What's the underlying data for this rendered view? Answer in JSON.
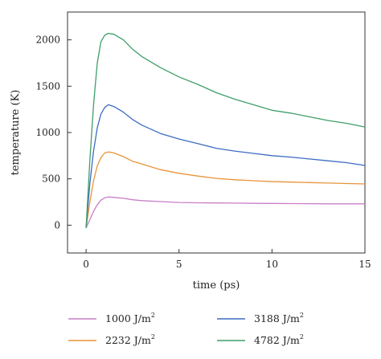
{
  "chart_data": {
    "type": "line",
    "xlabel": "time (ps)",
    "ylabel": "temperature (K)",
    "xlim": [
      -1,
      15
    ],
    "ylim": [
      -300,
      2300
    ],
    "x_ticks": [
      0,
      5,
      10,
      15
    ],
    "y_ticks": [
      0,
      500,
      1000,
      1500,
      2000
    ],
    "grid": false,
    "legend_position": "bottom",
    "series": [
      {
        "name": "1000 J/m",
        "name_sup": "2",
        "color": "#c77fc7",
        "x": [
          0,
          0.2,
          0.4,
          0.6,
          0.8,
          1.0,
          1.2,
          1.5,
          2,
          2.5,
          3,
          4,
          5,
          6,
          7,
          8,
          9,
          10,
          11,
          12,
          13,
          14,
          15
        ],
        "y": [
          -30,
          60,
          150,
          220,
          270,
          295,
          305,
          300,
          290,
          275,
          265,
          255,
          245,
          242,
          240,
          238,
          236,
          235,
          233,
          232,
          230,
          230,
          230
        ]
      },
      {
        "name": "2232 J/m",
        "name_sup": "2",
        "color": "#e8943a",
        "x": [
          0,
          0.2,
          0.4,
          0.6,
          0.8,
          1.0,
          1.2,
          1.5,
          2,
          2.5,
          3,
          4,
          5,
          6,
          7,
          8,
          9,
          10,
          11,
          12,
          13,
          14,
          15
        ],
        "y": [
          -30,
          250,
          480,
          640,
          730,
          780,
          790,
          780,
          740,
          690,
          660,
          600,
          560,
          530,
          505,
          490,
          480,
          470,
          465,
          460,
          455,
          450,
          445
        ]
      },
      {
        "name": "3188 J/m",
        "name_sup": "2",
        "color": "#3d6bc4",
        "x": [
          0,
          0.2,
          0.4,
          0.6,
          0.8,
          1.0,
          1.2,
          1.5,
          2,
          2.5,
          3,
          4,
          5,
          6,
          7,
          8,
          9,
          10,
          11,
          12,
          13,
          14,
          15
        ],
        "y": [
          -30,
          450,
          800,
          1050,
          1200,
          1270,
          1300,
          1280,
          1220,
          1140,
          1080,
          990,
          930,
          880,
          830,
          800,
          775,
          750,
          735,
          715,
          695,
          675,
          645
        ]
      },
      {
        "name": "4782 J/m",
        "name_sup": "2",
        "color": "#3e9e6a",
        "x": [
          0,
          0.2,
          0.4,
          0.6,
          0.8,
          1.0,
          1.2,
          1.5,
          2,
          2.5,
          3,
          4,
          5,
          6,
          7,
          8,
          9,
          10,
          11,
          12,
          13,
          14,
          15
        ],
        "y": [
          -30,
          700,
          1300,
          1750,
          1980,
          2050,
          2070,
          2060,
          2000,
          1900,
          1820,
          1700,
          1600,
          1520,
          1430,
          1360,
          1300,
          1240,
          1210,
          1170,
          1130,
          1100,
          1060
        ]
      }
    ]
  }
}
